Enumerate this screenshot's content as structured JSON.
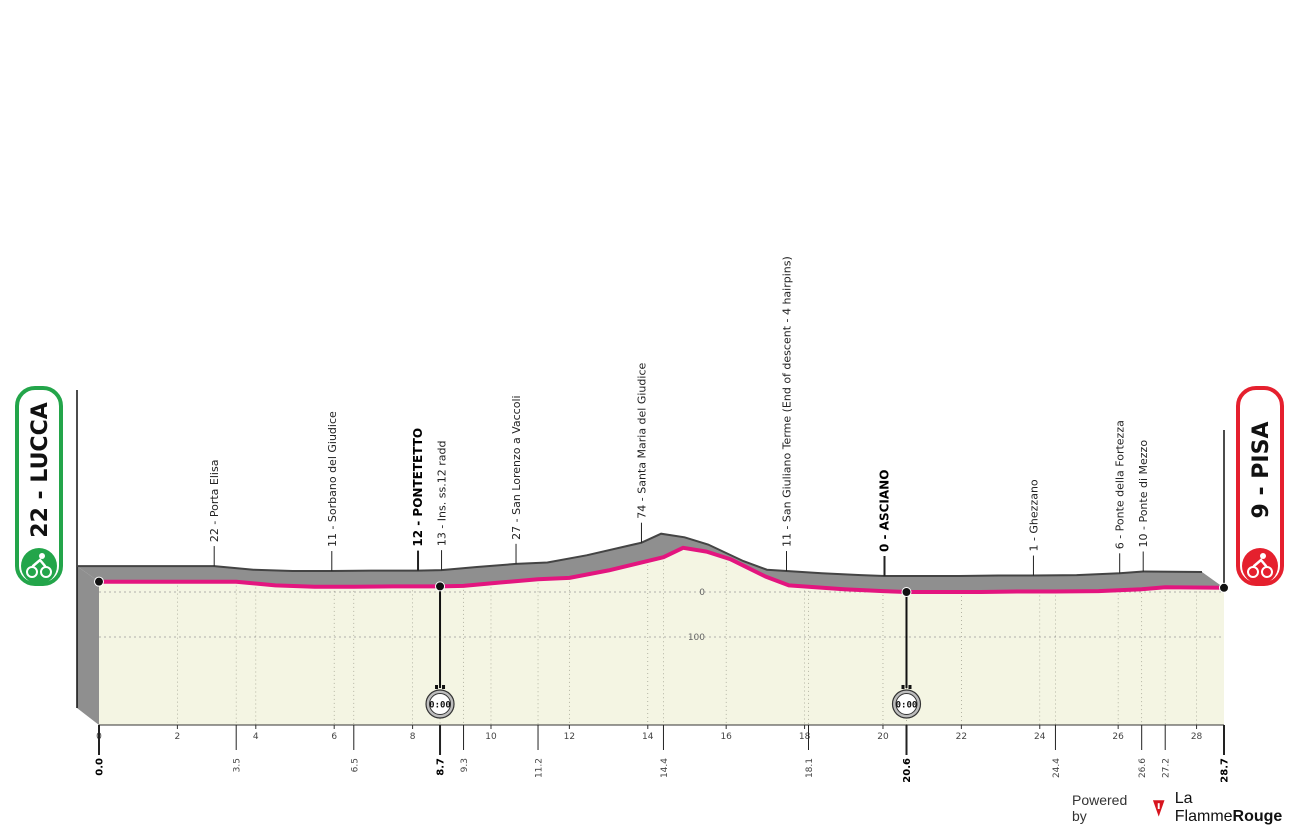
{
  "chart_data": {
    "type": "area",
    "title": "",
    "x_unit": "km",
    "xlim": [
      0,
      28.7
    ],
    "x_axis_ticks": [
      0,
      2,
      4,
      6,
      8,
      10,
      12,
      14,
      16,
      18,
      20,
      22,
      24,
      26,
      28
    ],
    "altitude_gridlines": [
      "0",
      "100"
    ],
    "start": {
      "label": "22 - LUCCA",
      "km": "0.0",
      "altitude_m": 22,
      "color": "#23a54a"
    },
    "finish": {
      "label": "9 - PISA",
      "km": "28.7",
      "altitude_m": 9,
      "color": "#e5202e"
    },
    "profile": [
      {
        "km": 0,
        "alt": 22
      },
      {
        "km": 1,
        "alt": 22
      },
      {
        "km": 2,
        "alt": 22
      },
      {
        "km": 3.5,
        "alt": 22
      },
      {
        "km": 4.5,
        "alt": 14
      },
      {
        "km": 5.5,
        "alt": 11
      },
      {
        "km": 6.5,
        "alt": 11
      },
      {
        "km": 7.5,
        "alt": 12
      },
      {
        "km": 8.7,
        "alt": 12
      },
      {
        "km": 9.3,
        "alt": 13
      },
      {
        "km": 10.2,
        "alt": 20
      },
      {
        "km": 11.2,
        "alt": 27
      },
      {
        "km": 12,
        "alt": 30
      },
      {
        "km": 13,
        "alt": 46
      },
      {
        "km": 14.4,
        "alt": 74
      },
      {
        "km": 14.9,
        "alt": 94
      },
      {
        "km": 15.5,
        "alt": 86
      },
      {
        "km": 16.1,
        "alt": 70
      },
      {
        "km": 17,
        "alt": 33
      },
      {
        "km": 17.6,
        "alt": 14
      },
      {
        "km": 18.1,
        "alt": 11
      },
      {
        "km": 19,
        "alt": 6
      },
      {
        "km": 20,
        "alt": 2
      },
      {
        "km": 20.6,
        "alt": 0
      },
      {
        "km": 21.5,
        "alt": 0
      },
      {
        "km": 22.5,
        "alt": 0
      },
      {
        "km": 23.5,
        "alt": 1
      },
      {
        "km": 24.4,
        "alt": 1
      },
      {
        "km": 25.5,
        "alt": 2
      },
      {
        "km": 26.6,
        "alt": 6
      },
      {
        "km": 27.2,
        "alt": 10
      },
      {
        "km": 28.7,
        "alt": 9
      }
    ],
    "points_of_interest": [
      {
        "label": "22 - Porta Elisa",
        "km": 3.5,
        "bold": false
      },
      {
        "label": "11 - Sorbano del Giudice",
        "km": 6.5,
        "bold": false
      },
      {
        "label": "12 - PONTETETTO",
        "km": 8.7,
        "bold": true
      },
      {
        "label": "13 - Ins. ss.12 radd",
        "km": 9.3,
        "bold": false
      },
      {
        "label": "27 - San Lorenzo a Vaccoli",
        "km": 11.2,
        "bold": false
      },
      {
        "label": "74 - Santa Maria del Giudice",
        "km": 14.4,
        "bold": false
      },
      {
        "label": "11 - San Giuliano Terme (End of descent - 4 hairpins)",
        "km": 18.1,
        "bold": false
      },
      {
        "label": "0 - ASCIANO",
        "km": 20.6,
        "bold": true
      },
      {
        "label": "1 - Ghezzano",
        "km": 24.4,
        "bold": false
      },
      {
        "label": "6 - Ponte della Fortezza",
        "km": 26.6,
        "bold": false
      },
      {
        "label": "10 - Ponte di Mezzo",
        "km": 27.2,
        "bold": false
      }
    ],
    "km_markers": [
      {
        "text": "0.0",
        "km": 0,
        "bold": true
      },
      {
        "text": "3.5",
        "km": 3.5,
        "bold": false
      },
      {
        "text": "6.5",
        "km": 6.5,
        "bold": false
      },
      {
        "text": "8.7",
        "km": 8.7,
        "bold": true
      },
      {
        "text": "9.3",
        "km": 9.3,
        "bold": false
      },
      {
        "text": "11.2",
        "km": 11.2,
        "bold": false
      },
      {
        "text": "14.4",
        "km": 14.4,
        "bold": false
      },
      {
        "text": "18.1",
        "km": 18.1,
        "bold": false
      },
      {
        "text": "20.6",
        "km": 20.6,
        "bold": true
      },
      {
        "text": "24.4",
        "km": 24.4,
        "bold": false
      },
      {
        "text": "26.6",
        "km": 26.6,
        "bold": false
      },
      {
        "text": "27.2",
        "km": 27.2,
        "bold": false
      },
      {
        "text": "28.7",
        "km": 28.7,
        "bold": true
      }
    ],
    "intermediate_times": [
      {
        "km": 8.7,
        "label": "0:00"
      },
      {
        "km": 20.6,
        "label": "0:00"
      }
    ],
    "colors": {
      "route_line": "#e3157f",
      "profile_side": "#8f8f8f",
      "profile_top": "#444444",
      "plot_background": "#f4f5e3"
    }
  },
  "footer": {
    "powered_by": "Powered by",
    "brand_light": "La Flamme",
    "brand_bold": "Rouge"
  }
}
